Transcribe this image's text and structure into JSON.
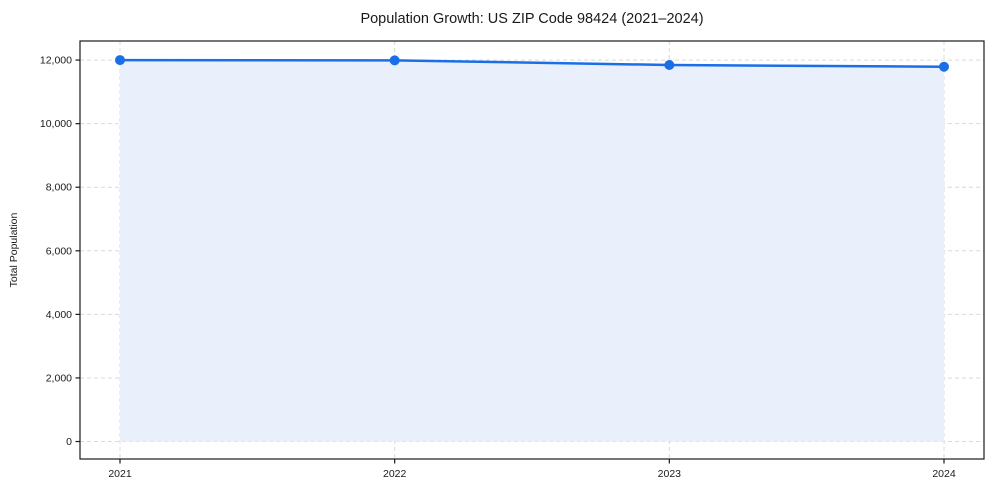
{
  "chart_data": {
    "type": "area",
    "title": "Population Growth: US ZIP Code 98424 (2021–2024)",
    "xlabel": "",
    "ylabel": "Total Population",
    "categories": [
      "2021",
      "2022",
      "2023",
      "2024"
    ],
    "series": [
      {
        "name": "Total Population",
        "values": [
          12000,
          11990,
          11845,
          11790
        ]
      }
    ],
    "yticks": [
      {
        "value": 0,
        "label": "0"
      },
      {
        "value": 2000,
        "label": "2,000"
      },
      {
        "value": 4000,
        "label": "4,000"
      },
      {
        "value": 6000,
        "label": "6,000"
      },
      {
        "value": 8000,
        "label": "8,000"
      },
      {
        "value": 10000,
        "label": "10,000"
      },
      {
        "value": 12000,
        "label": "12,000"
      }
    ],
    "ylim": [
      -550,
      12600
    ],
    "grid": "dashed",
    "legend_position": "none",
    "colors": {
      "line": "#1a6fe8",
      "marker": "#1a6fe8",
      "fill": "#e9f0fc",
      "gridline": "#d9d9d9",
      "spine": "#1a1a1a",
      "text": "#1a1a1a"
    }
  }
}
